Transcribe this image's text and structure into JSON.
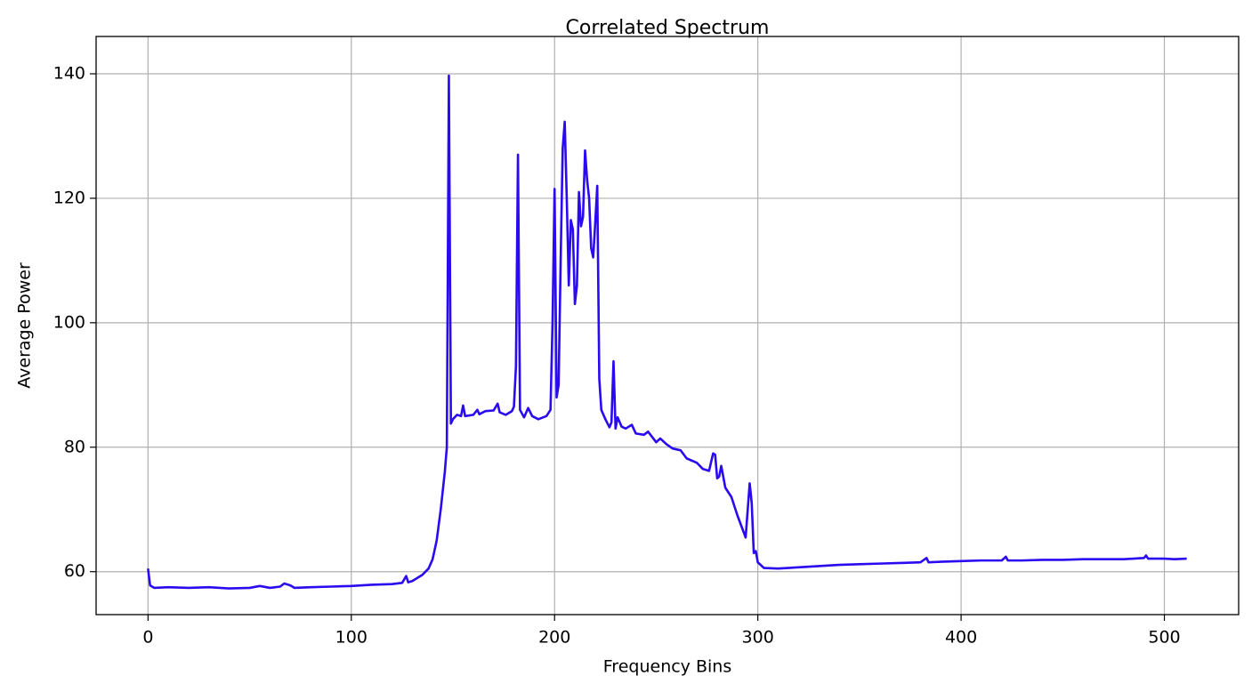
{
  "chart_data": {
    "type": "line",
    "title": "Correlated Spectrum",
    "x_label": "Frequency Bins",
    "y_label": "Average Power",
    "x": [
      0,
      1,
      3,
      10,
      20,
      30,
      40,
      50,
      55,
      60,
      65,
      67,
      70,
      72,
      80,
      90,
      100,
      110,
      120,
      125,
      127,
      128,
      130,
      135,
      138,
      140,
      142,
      144,
      146,
      147,
      148,
      149,
      150,
      152,
      154,
      155,
      156,
      160,
      162,
      163,
      166,
      170,
      172,
      173,
      176,
      179,
      180,
      181,
      182,
      183,
      185,
      187,
      189,
      192,
      196,
      198,
      199,
      200,
      201,
      202,
      203,
      204,
      205,
      206,
      207,
      208,
      209,
      210,
      211,
      212,
      213,
      214,
      215,
      216,
      217,
      218,
      219,
      220,
      221,
      222,
      223,
      225,
      227,
      228,
      229,
      230,
      231,
      233,
      235,
      238,
      240,
      244,
      246,
      250,
      252,
      255,
      258,
      262,
      265,
      270,
      273,
      276,
      278,
      279,
      280,
      281,
      282,
      284,
      287,
      290,
      294,
      296,
      297,
      298,
      299,
      300,
      303,
      310,
      320,
      330,
      340,
      350,
      360,
      370,
      380,
      383,
      384,
      390,
      400,
      410,
      420,
      422,
      423,
      430,
      440,
      450,
      460,
      470,
      480,
      490,
      491,
      492,
      500,
      505,
      511
    ],
    "values": [
      60.5,
      57.8,
      57.4,
      57.5,
      57.4,
      57.5,
      57.3,
      57.4,
      57.7,
      57.4,
      57.6,
      58.1,
      57.8,
      57.4,
      57.5,
      57.6,
      57.7,
      57.9,
      58.0,
      58.2,
      59.3,
      58.3,
      58.5,
      59.5,
      60.5,
      62,
      65,
      70,
      76,
      80,
      139.7,
      83.8,
      84.5,
      85.2,
      85.0,
      86.7,
      85.0,
      85.2,
      86.0,
      85.3,
      85.8,
      85.9,
      87.0,
      85.6,
      85.2,
      85.8,
      86.5,
      93,
      127,
      86,
      84.8,
      86.3,
      85.0,
      84.5,
      85.0,
      86,
      100,
      121.5,
      88,
      90,
      110,
      128,
      132.3,
      120,
      106,
      116.5,
      115,
      103,
      106,
      121,
      115.5,
      117,
      127.7,
      123,
      120,
      112,
      110.5,
      116,
      122,
      91,
      86,
      84.5,
      83.2,
      84,
      93.8,
      83,
      84.8,
      83.3,
      83,
      83.6,
      82.2,
      82.0,
      82.5,
      80.8,
      81.4,
      80.5,
      79.8,
      79.5,
      78.2,
      77.5,
      76.5,
      76.2,
      79,
      78.8,
      75,
      75.3,
      77,
      73.5,
      72,
      69,
      65.5,
      74.2,
      71,
      63,
      63.3,
      61.5,
      60.6,
      60.5,
      60.7,
      60.9,
      61.1,
      61.2,
      61.3,
      61.4,
      61.5,
      62.2,
      61.5,
      61.6,
      61.7,
      61.8,
      61.8,
      62.4,
      61.8,
      61.8,
      61.9,
      61.9,
      62.0,
      62.0,
      62.0,
      62.2,
      62.6,
      62.1,
      62.1,
      62.0,
      62.1
    ],
    "color": "#2a0af0",
    "xlim": [
      -25.55,
      536.55
    ],
    "xticks": [
      0,
      100,
      200,
      300,
      400,
      500
    ],
    "ylim": [
      53.1,
      146.0
    ],
    "yticks": [
      60,
      80,
      100,
      120,
      140
    ],
    "grid": true
  }
}
